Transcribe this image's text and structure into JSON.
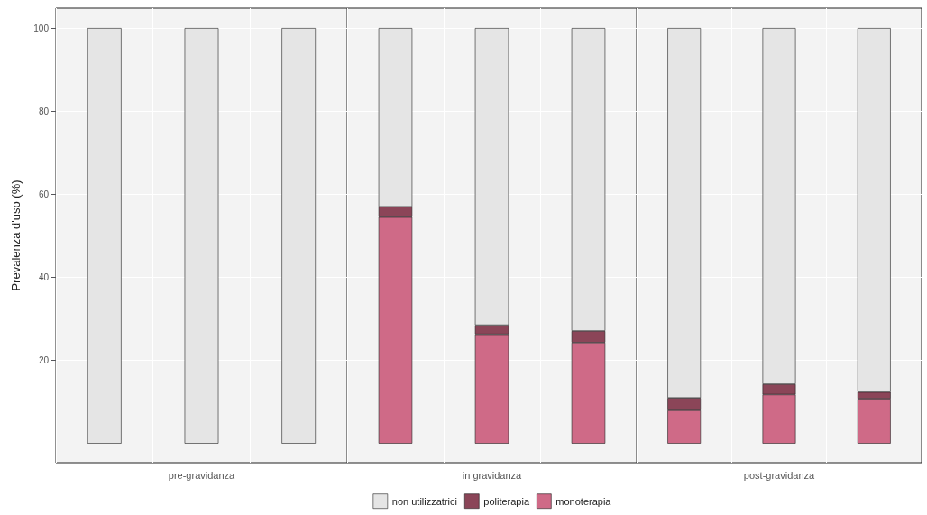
{
  "chart_data": [
    {
      "type": "bar",
      "stacked": true,
      "ylabel": "Prevalenza d'uso (%)",
      "categories": [
        null,
        "pre-gravidanza",
        null
      ],
      "ylim": [
        -4.6,
        104.8
      ],
      "yticks": [
        20,
        40,
        60,
        80,
        100
      ],
      "grid": true,
      "series": [
        {
          "color": "#e5e5e5",
          "values": [
            100,
            100,
            100
          ]
        }
      ]
    },
    {
      "type": "bar",
      "stacked": true,
      "categories": [
        null,
        "in gravidanza",
        null
      ],
      "ylim": [
        -4.6,
        104.8
      ],
      "yticks": [
        20,
        40,
        60,
        80,
        100
      ],
      "grid": true,
      "tick_labels": "x",
      "legend": "bottom",
      "series": [
        {
          "name": "monoterapia",
          "color": "#cf6a87",
          "values": [
            54.5,
            26.3,
            24.3
          ]
        },
        {
          "name": "politerapia",
          "color": "#8b4558",
          "values": [
            2.5,
            2.2,
            2.8
          ]
        },
        {
          "name": "non utilizzatrici",
          "color": "#e5e5e5",
          "values": [
            43,
            71.5,
            72.9
          ]
        }
      ]
    },
    {
      "type": "bar",
      "stacked": true,
      "categories": [
        null,
        "post-gravidanza",
        null
      ],
      "ylim": [
        -4.6,
        104.8
      ],
      "yticks": [
        20,
        40,
        60,
        80,
        100
      ],
      "grid": true,
      "tick_labels": "x",
      "series": [
        {
          "color": "#cf6a87",
          "values": [
            8,
            11.8,
            10.8
          ]
        },
        {
          "color": "#8b4558",
          "values": [
            3,
            2.5,
            1.6
          ]
        },
        {
          "color": "#e5e5e5",
          "values": [
            89,
            85.7,
            87.6
          ]
        }
      ]
    }
  ]
}
